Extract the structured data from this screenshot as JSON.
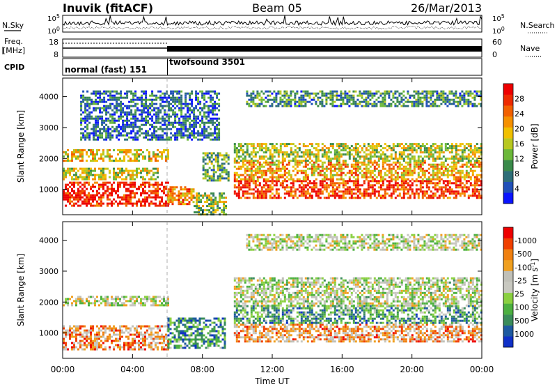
{
  "header": {
    "station": "Inuvik (fitACF)",
    "beam": "Beam 05",
    "date": "26/Mar/2013"
  },
  "top_panels": {
    "nsky_label": "N.Sky",
    "nsearch_label": "N.Search",
    "noise_ticks": [
      "10^5",
      "10^0"
    ],
    "freq_label_1": "Freq.",
    "freq_label_2": "[MHz]",
    "freq_ticks": [
      "18",
      "8"
    ],
    "nave_label": "Nave",
    "nave_ticks": [
      "60",
      "0"
    ],
    "cpid_label": "CPID",
    "cpid_segments": [
      {
        "name": "normal (fast) 151",
        "start_h": 0,
        "end_h": 6
      },
      {
        "name": "twofsound 3501",
        "start_h": 6,
        "end_h": 24
      }
    ]
  },
  "chart_data": [
    {
      "type": "heatmap",
      "title": "",
      "ylabel": "Slant Range [km]",
      "xlabel": "",
      "x_range_hours": [
        0,
        24
      ],
      "ylim": [
        180,
        4600
      ],
      "yticks": [
        1000,
        2000,
        3000,
        4000
      ],
      "colorbar": {
        "label": "Power [dB]",
        "ticks": [
          "4",
          "8",
          "12",
          "16",
          "20",
          "24",
          "28"
        ],
        "colors": [
          "#0a14ff",
          "#2050b8",
          "#2e6e78",
          "#3a8a4a",
          "#6cb83a",
          "#b8c820",
          "#f0c000",
          "#f59000",
          "#f26000",
          "#ee2a00",
          "#ee0000"
        ]
      },
      "bands": [
        {
          "t0": 0.0,
          "t1": 6.0,
          "r0": 500,
          "r1": 1250,
          "level": 0.92
        },
        {
          "t0": 0.0,
          "t1": 5.5,
          "r0": 1300,
          "r1": 1700,
          "level": 0.5
        },
        {
          "t0": 0.0,
          "t1": 6.0,
          "r0": 1900,
          "r1": 2300,
          "level": 0.55
        },
        {
          "t0": 6.0,
          "t1": 7.5,
          "r0": 500,
          "r1": 1100,
          "level": 0.7
        },
        {
          "t0": 7.5,
          "t1": 9.3,
          "r0": 200,
          "r1": 900,
          "level": 0.45
        },
        {
          "t0": 8.0,
          "t1": 9.5,
          "r0": 1300,
          "r1": 2200,
          "level": 0.35
        },
        {
          "t0": 9.8,
          "t1": 24.0,
          "r0": 700,
          "r1": 1300,
          "level": 0.85
        },
        {
          "t0": 9.8,
          "t1": 24.0,
          "r0": 1300,
          "r1": 1900,
          "level": 0.65
        },
        {
          "t0": 9.8,
          "t1": 24.0,
          "r0": 1900,
          "r1": 2500,
          "level": 0.5
        },
        {
          "t0": 10.5,
          "t1": 24.0,
          "r0": 3700,
          "r1": 4200,
          "level": 0.3
        },
        {
          "t0": 1.0,
          "t1": 9.0,
          "r0": 2600,
          "r1": 4200,
          "level": 0.2
        }
      ]
    },
    {
      "type": "heatmap",
      "title": "",
      "ylabel": "Slant Range [km]",
      "xlabel": "Time UT",
      "x_range_hours": [
        0,
        24
      ],
      "xticks": [
        "00:00",
        "04:00",
        "08:00",
        "12:00",
        "16:00",
        "20:00",
        "00:00"
      ],
      "ylim": [
        180,
        4600
      ],
      "yticks": [
        1000,
        2000,
        3000,
        4000
      ],
      "colorbar": {
        "label": "Velocity [m s^-1]",
        "ticks": [
          "1000",
          "500",
          "100",
          "25",
          "-25",
          "-100",
          "-500",
          "-1000"
        ],
        "colors": [
          "#1030c8",
          "#1e5aa0",
          "#3a8c5a",
          "#4cb040",
          "#8ad040",
          "#c8c8c0",
          "#c0c0b8",
          "#f0a020",
          "#f08010",
          "#f04000",
          "#ee0000"
        ]
      },
      "bands": [
        {
          "t0": 0.0,
          "t1": 6.0,
          "r0": 500,
          "r1": 1250,
          "level": 0.72
        },
        {
          "t0": 0.0,
          "t1": 6.0,
          "r0": 1900,
          "r1": 2200,
          "level": 0.5
        },
        {
          "t0": 6.0,
          "t1": 9.3,
          "r0": 500,
          "r1": 1500,
          "level": 0.25
        },
        {
          "t0": 9.8,
          "t1": 24.0,
          "r0": 700,
          "r1": 1300,
          "level": 0.7
        },
        {
          "t0": 9.8,
          "t1": 24.0,
          "r0": 1300,
          "r1": 1900,
          "level": 0.3
        },
        {
          "t0": 9.8,
          "t1": 24.0,
          "r0": 1900,
          "r1": 2800,
          "level": 0.48
        },
        {
          "t0": 10.5,
          "t1": 24.0,
          "r0": 3700,
          "r1": 4200,
          "level": 0.5
        }
      ]
    }
  ]
}
